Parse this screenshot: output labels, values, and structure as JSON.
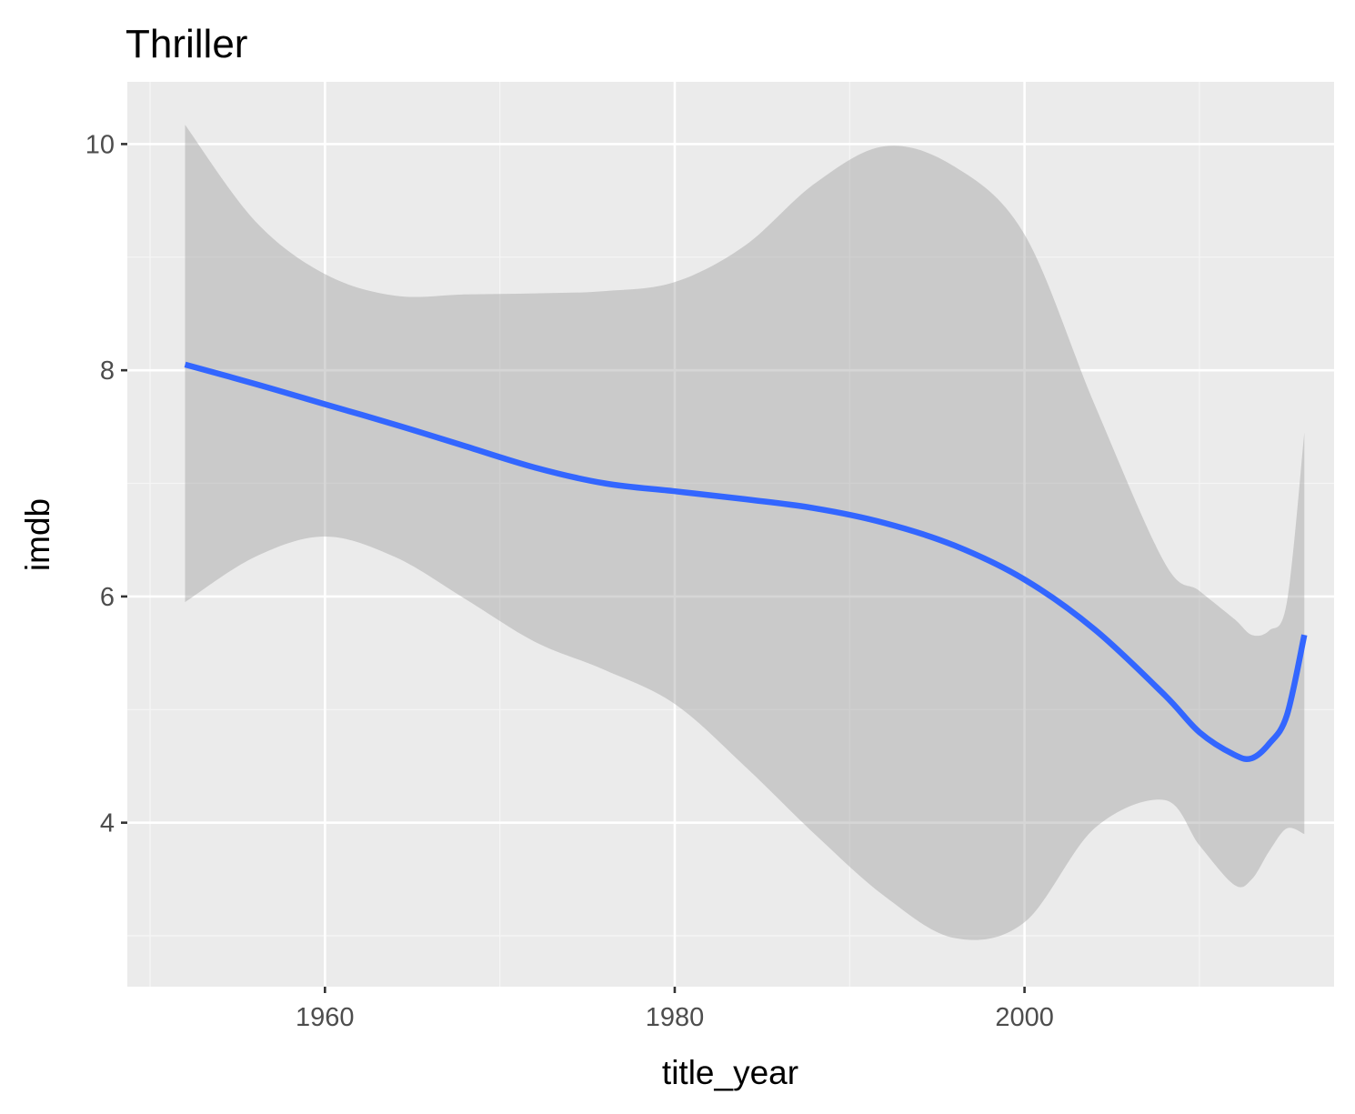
{
  "chart_data": {
    "type": "line",
    "title": "Thriller",
    "xlabel": "title_year",
    "ylabel": "imdb",
    "xlim": [
      1948.7,
      2017.7
    ],
    "ylim": [
      2.55,
      10.55
    ],
    "x_ticks": [
      1960,
      1980,
      2000
    ],
    "x_tick_labels": [
      "1960",
      "1980",
      "2000"
    ],
    "x_minor_ticks": [
      1950,
      1970,
      1990,
      2010
    ],
    "y_ticks": [
      4,
      6,
      8,
      10
    ],
    "y_tick_labels": [
      "4",
      "6",
      "8",
      "10"
    ],
    "y_minor_ticks": [
      3,
      5,
      7,
      9
    ],
    "grid": true,
    "legend": "none",
    "colors": {
      "panel_background": "#EBEBEB",
      "grid_major": "#FFFFFF",
      "grid_minor": "#F5F5F5",
      "ribbon": "#999999",
      "line": "#3366FF",
      "tick_text": "#4D4D4D"
    },
    "series": [
      {
        "smooth": true,
        "x": [
          1952,
          1956,
          1960,
          1964,
          1968,
          1972,
          1976,
          1980,
          1984,
          1988,
          1992,
          1996,
          2000,
          2004,
          2008,
          2010,
          2012,
          2013,
          2014,
          2015,
          2016
        ],
        "y": [
          8.05,
          7.88,
          7.7,
          7.52,
          7.33,
          7.14,
          7.0,
          6.93,
          6.86,
          6.78,
          6.65,
          6.45,
          6.15,
          5.71,
          5.13,
          4.8,
          4.6,
          4.57,
          4.7,
          4.95,
          5.66
        ],
        "ymin": [
          5.95,
          6.35,
          6.53,
          6.35,
          5.98,
          5.6,
          5.35,
          5.05,
          4.5,
          3.9,
          3.35,
          2.98,
          3.12,
          3.95,
          4.2,
          3.8,
          3.45,
          3.5,
          3.75,
          3.95,
          3.9
        ],
        "ymax": [
          10.17,
          9.32,
          8.85,
          8.66,
          8.67,
          8.68,
          8.7,
          8.78,
          9.1,
          9.65,
          9.98,
          9.8,
          9.2,
          7.7,
          6.3,
          6.05,
          5.8,
          5.66,
          5.7,
          5.95,
          7.45
        ]
      }
    ]
  }
}
